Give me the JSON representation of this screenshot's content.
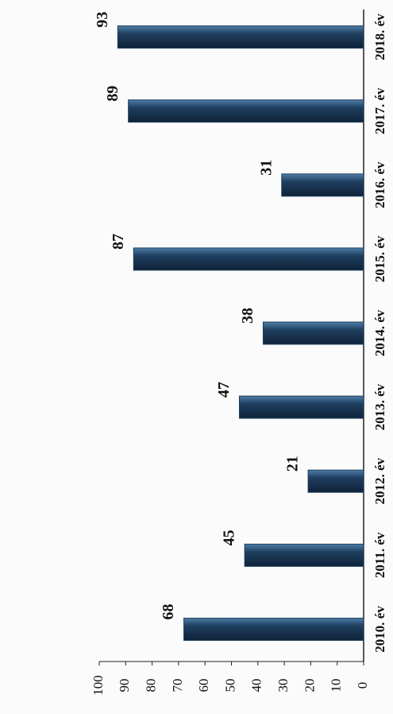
{
  "chart_data": {
    "type": "bar",
    "categories": [
      "2010. év",
      "2011. év",
      "2012. év",
      "2013. év",
      "2014. év",
      "2015. év",
      "2016. év",
      "2017. év",
      "2018. év"
    ],
    "values": [
      68,
      45,
      21,
      47,
      38,
      87,
      31,
      89,
      93
    ],
    "color": "#1f3f60",
    "ylim": [
      0,
      100
    ],
    "yticks": [
      0,
      10,
      20,
      30,
      40,
      50,
      60,
      70,
      80,
      90,
      100
    ]
  }
}
